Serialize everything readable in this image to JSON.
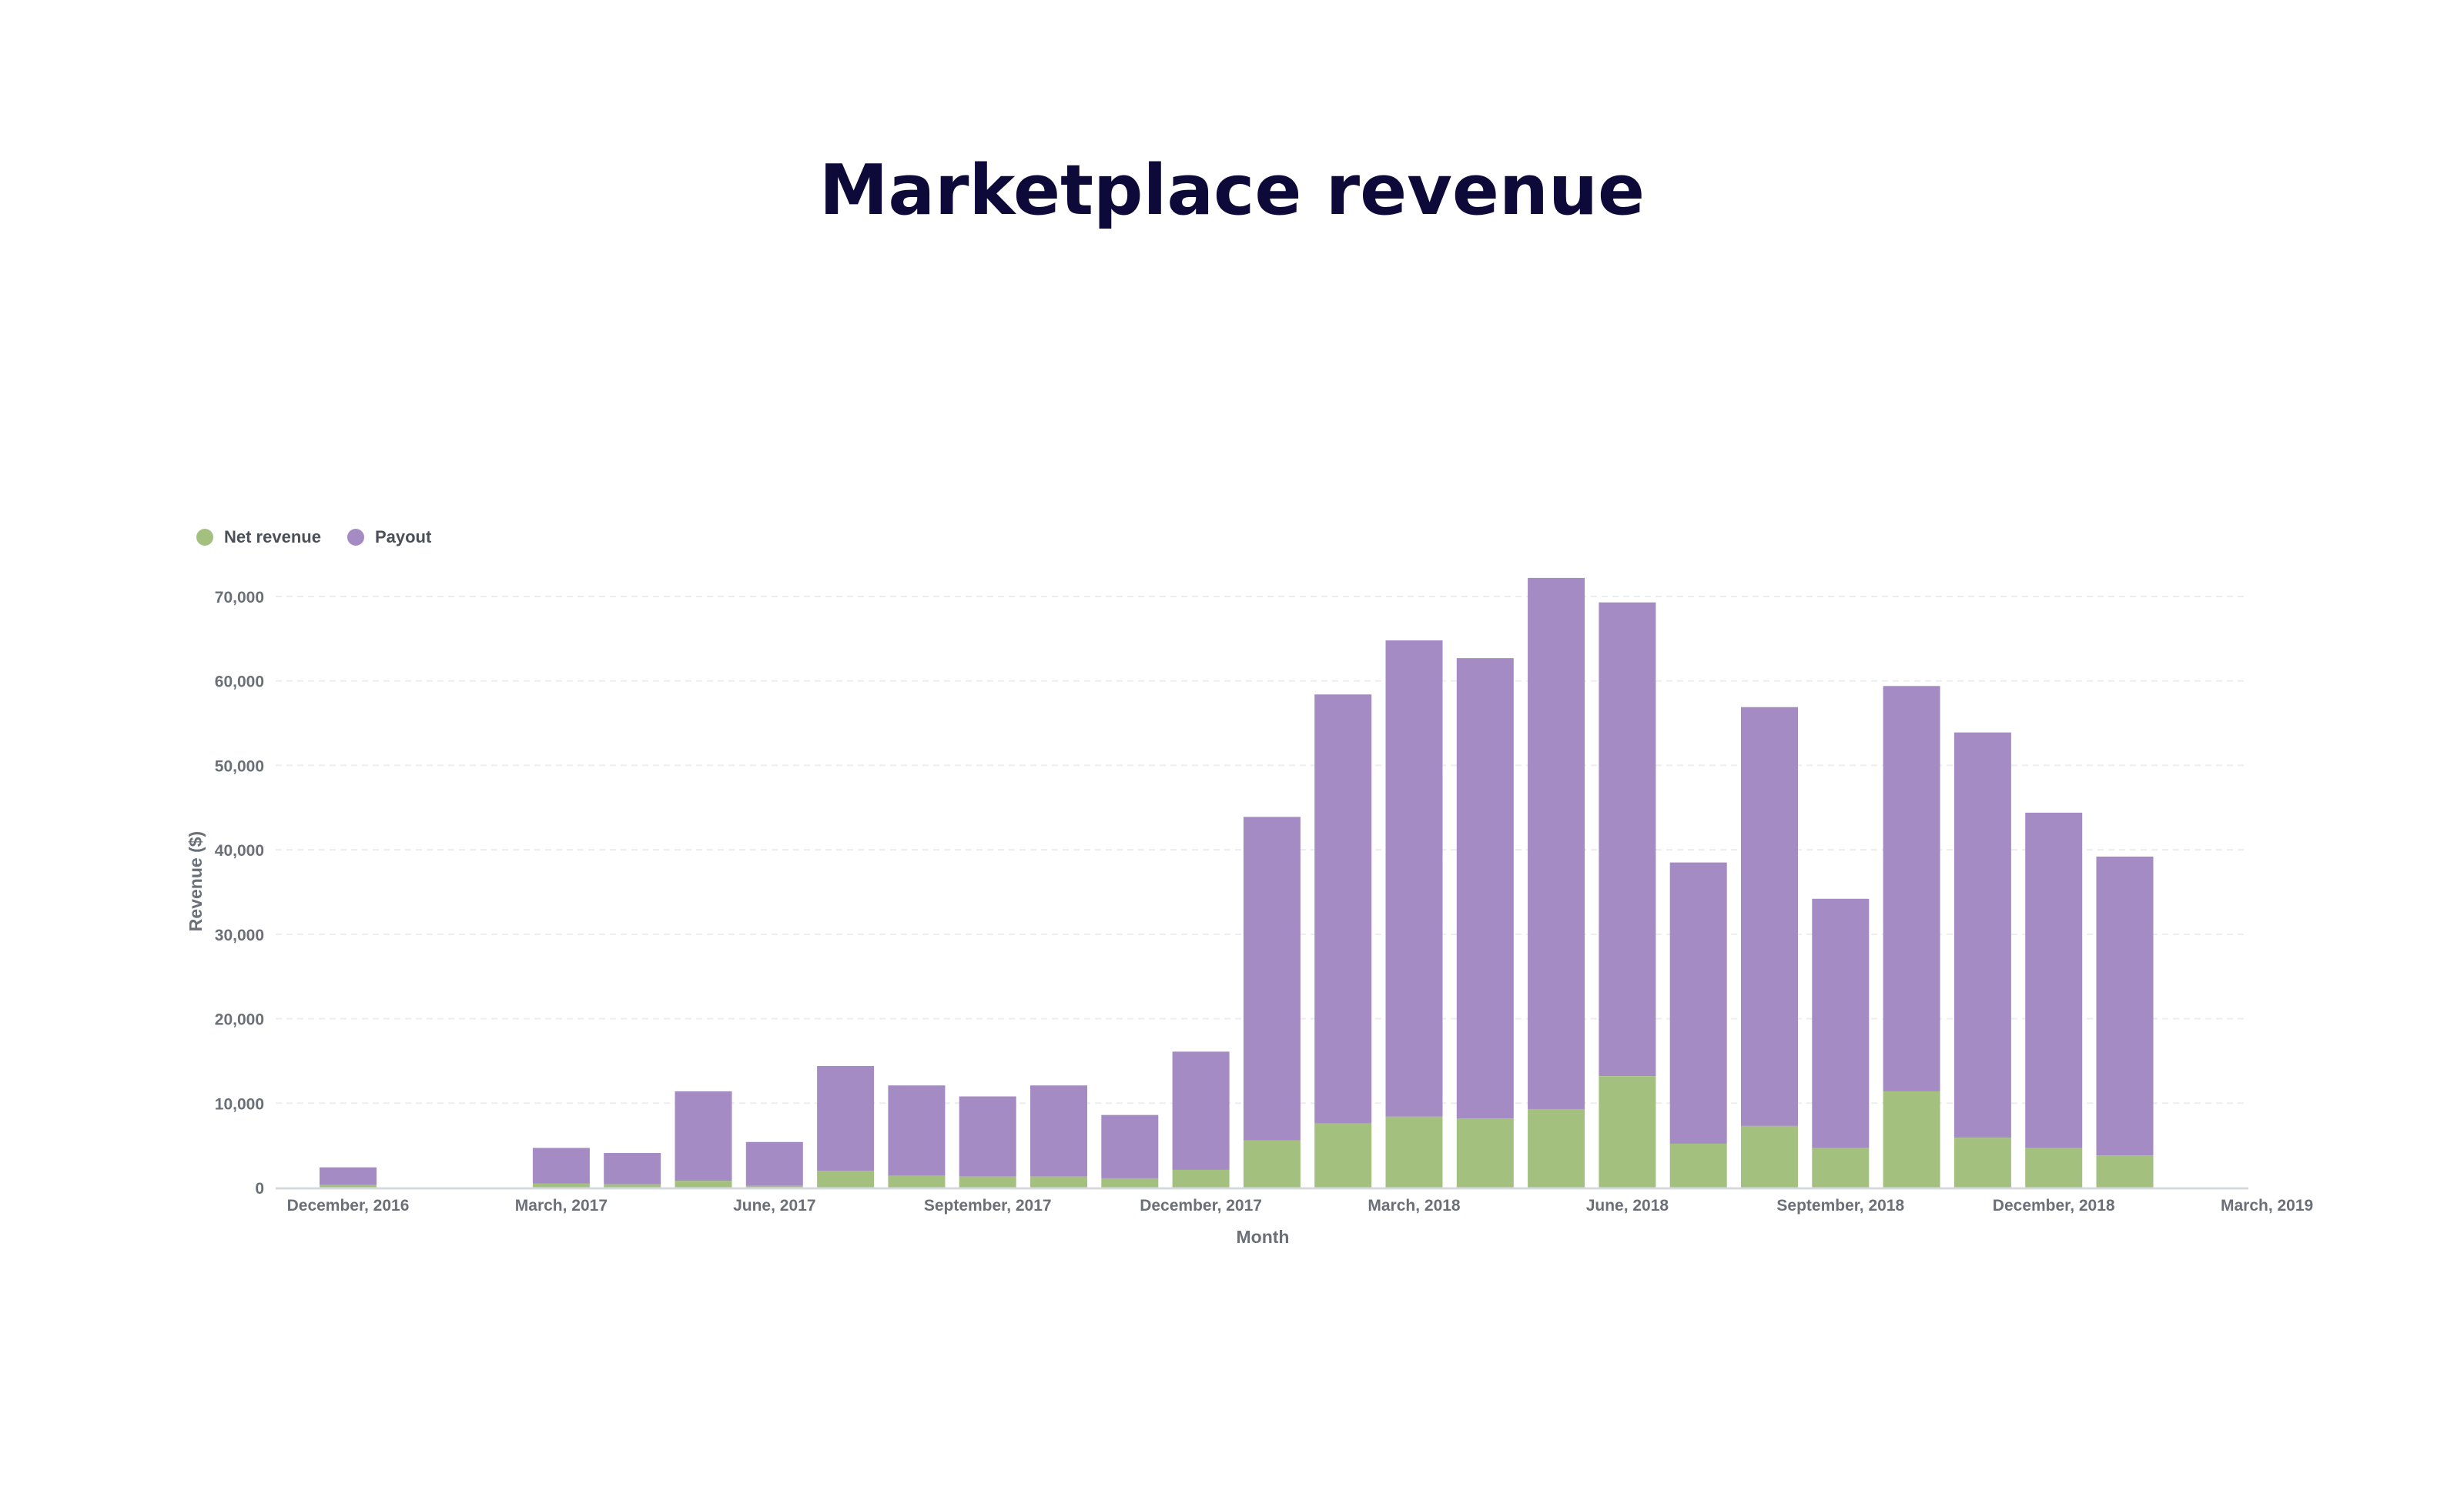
{
  "title": "Marketplace revenue",
  "colors": {
    "net_revenue": "#a3c07f",
    "payout": "#a58bc3",
    "title": "#0d0a3a",
    "axis_text": "#6b7078",
    "grid": "#ebedf0",
    "axis_line": "#d6d9de"
  },
  "legend": [
    {
      "label": "Net revenue",
      "color": "#a3c07f"
    },
    {
      "label": "Payout",
      "color": "#a58bc3"
    }
  ],
  "chart_data": {
    "type": "bar",
    "stacked": true,
    "title": "Marketplace revenue",
    "xlabel": "Month",
    "ylabel": "Revenue ($)",
    "ylim": [
      0,
      70000
    ],
    "yticks": [
      0,
      10000,
      20000,
      30000,
      40000,
      50000,
      60000,
      70000
    ],
    "ytick_labels": [
      "0",
      "10,000",
      "20,000",
      "30,000",
      "40,000",
      "50,000",
      "60,000",
      "70,000"
    ],
    "xtick_labels": [
      "December, 2016",
      "March, 2017",
      "June, 2017",
      "September, 2017",
      "December, 2017",
      "March, 2018",
      "June, 2018",
      "September, 2018",
      "December, 2018",
      "March, 2019"
    ],
    "grid": true,
    "legend_position": "top-left",
    "categories": [
      "2016-12",
      "2017-01",
      "2017-02",
      "2017-03",
      "2017-04",
      "2017-05",
      "2017-06",
      "2017-07",
      "2017-08",
      "2017-09",
      "2017-10",
      "2017-11",
      "2017-12",
      "2018-01",
      "2018-02",
      "2018-03",
      "2018-04",
      "2018-05",
      "2018-06",
      "2018-07",
      "2018-08",
      "2018-09",
      "2018-10",
      "2018-11",
      "2018-12",
      "2019-01"
    ],
    "series": [
      {
        "name": "Net revenue",
        "values": [
          300,
          0,
          0,
          500,
          400,
          800,
          200,
          2000,
          1400,
          1300,
          1300,
          1100,
          2100,
          5600,
          7600,
          8400,
          8200,
          9300,
          13200,
          5200,
          7300,
          4700,
          11400,
          5900,
          4700,
          3800
        ]
      },
      {
        "name": "Payout",
        "values": [
          2100,
          0,
          0,
          4200,
          3700,
          10600,
          5200,
          12400,
          10700,
          9500,
          10800,
          7500,
          14000,
          38300,
          50800,
          56400,
          54500,
          62900,
          56100,
          33300,
          49600,
          29500,
          48000,
          48000,
          39700,
          35400
        ]
      }
    ]
  }
}
